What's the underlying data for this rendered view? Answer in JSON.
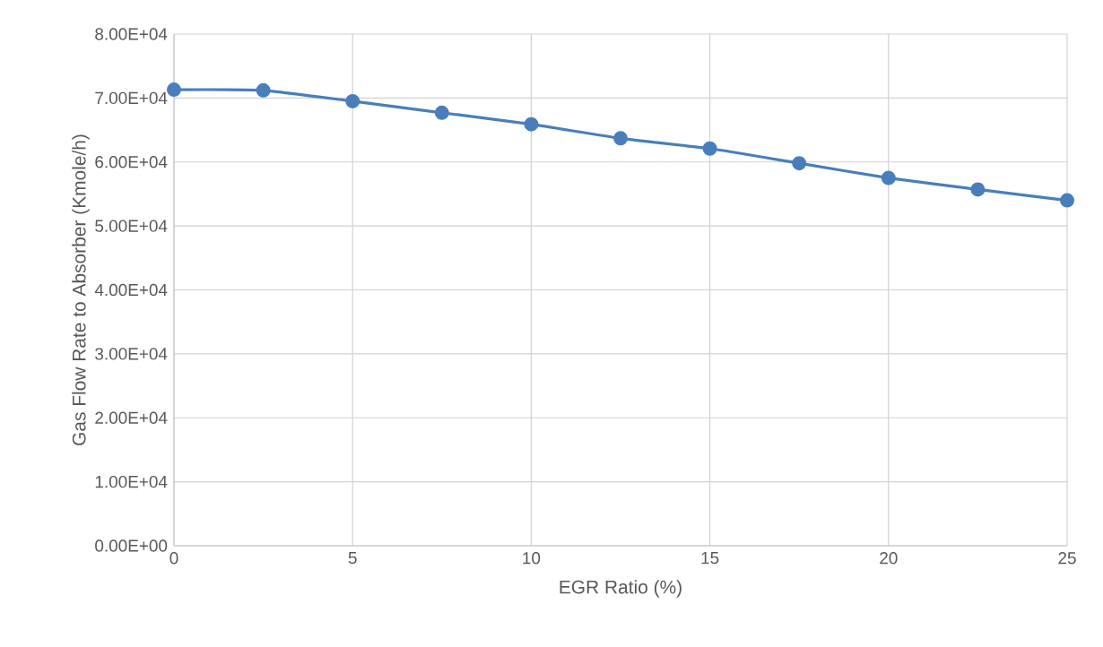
{
  "chart_data": {
    "type": "line",
    "xlabel": "EGR Ratio (%)",
    "ylabel": "Gas Flow Rate to Absorber (Kmole/h)",
    "x": [
      0,
      2.5,
      5,
      7.5,
      10,
      12.5,
      15,
      17.5,
      20,
      22.5,
      25
    ],
    "series": [
      {
        "color": "#4a7ebb",
        "values": [
          71300,
          71200,
          69500,
          67700,
          65900,
          63700,
          62100,
          59800,
          57500,
          55700,
          54000
        ]
      }
    ],
    "xlim": [
      0,
      25
    ],
    "xticks": [
      0,
      5,
      10,
      15,
      20,
      25
    ],
    "ylim": [
      0,
      80000
    ],
    "yticks": [
      {
        "value": 0,
        "label": "0.00E+00"
      },
      {
        "value": 10000,
        "label": "1.00E+04"
      },
      {
        "value": 20000,
        "label": "2.00E+04"
      },
      {
        "value": 30000,
        "label": "3.00E+04"
      },
      {
        "value": 40000,
        "label": "4.00E+04"
      },
      {
        "value": 50000,
        "label": "5.00E+04"
      },
      {
        "value": 60000,
        "label": "6.00E+04"
      },
      {
        "value": 70000,
        "label": "7.00E+04"
      },
      {
        "value": 80000,
        "label": "8.00E+04"
      }
    ],
    "grid": true,
    "marker": "circle",
    "line_style": "solid"
  }
}
